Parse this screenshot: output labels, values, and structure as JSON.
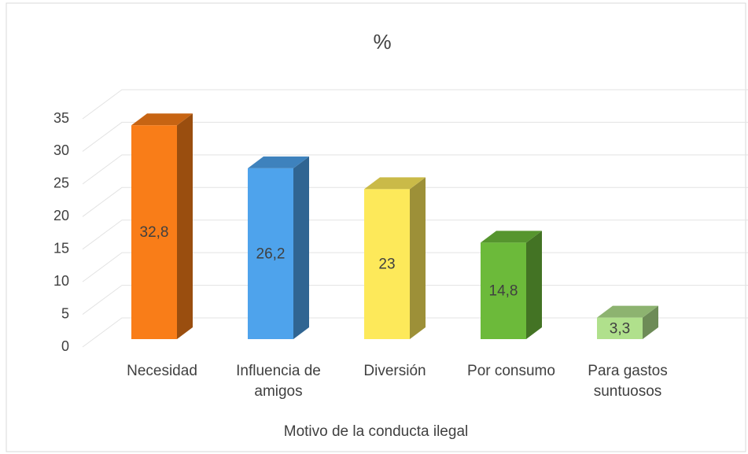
{
  "chart_data": {
    "type": "bar3d",
    "title": "%",
    "x_label": "Motivo de la conducta ilegal",
    "categories": [
      "Necesidad",
      "Influencia de amigos",
      "Diversión",
      "Por consumo",
      "Para gastos suntuosos"
    ],
    "values": [
      32.8,
      26.2,
      23,
      14.8,
      3.3
    ],
    "value_labels": [
      "32,8",
      "26,2",
      "23",
      "14,8",
      "3,3"
    ],
    "colors": [
      "#f97d18",
      "#4ea3ec",
      "#fde95a",
      "#6cba3a",
      "#b0e08c"
    ],
    "ylim": [
      0,
      35
    ],
    "yticks": [
      0,
      5,
      10,
      15,
      20,
      25,
      30,
      35
    ],
    "grid": true
  }
}
